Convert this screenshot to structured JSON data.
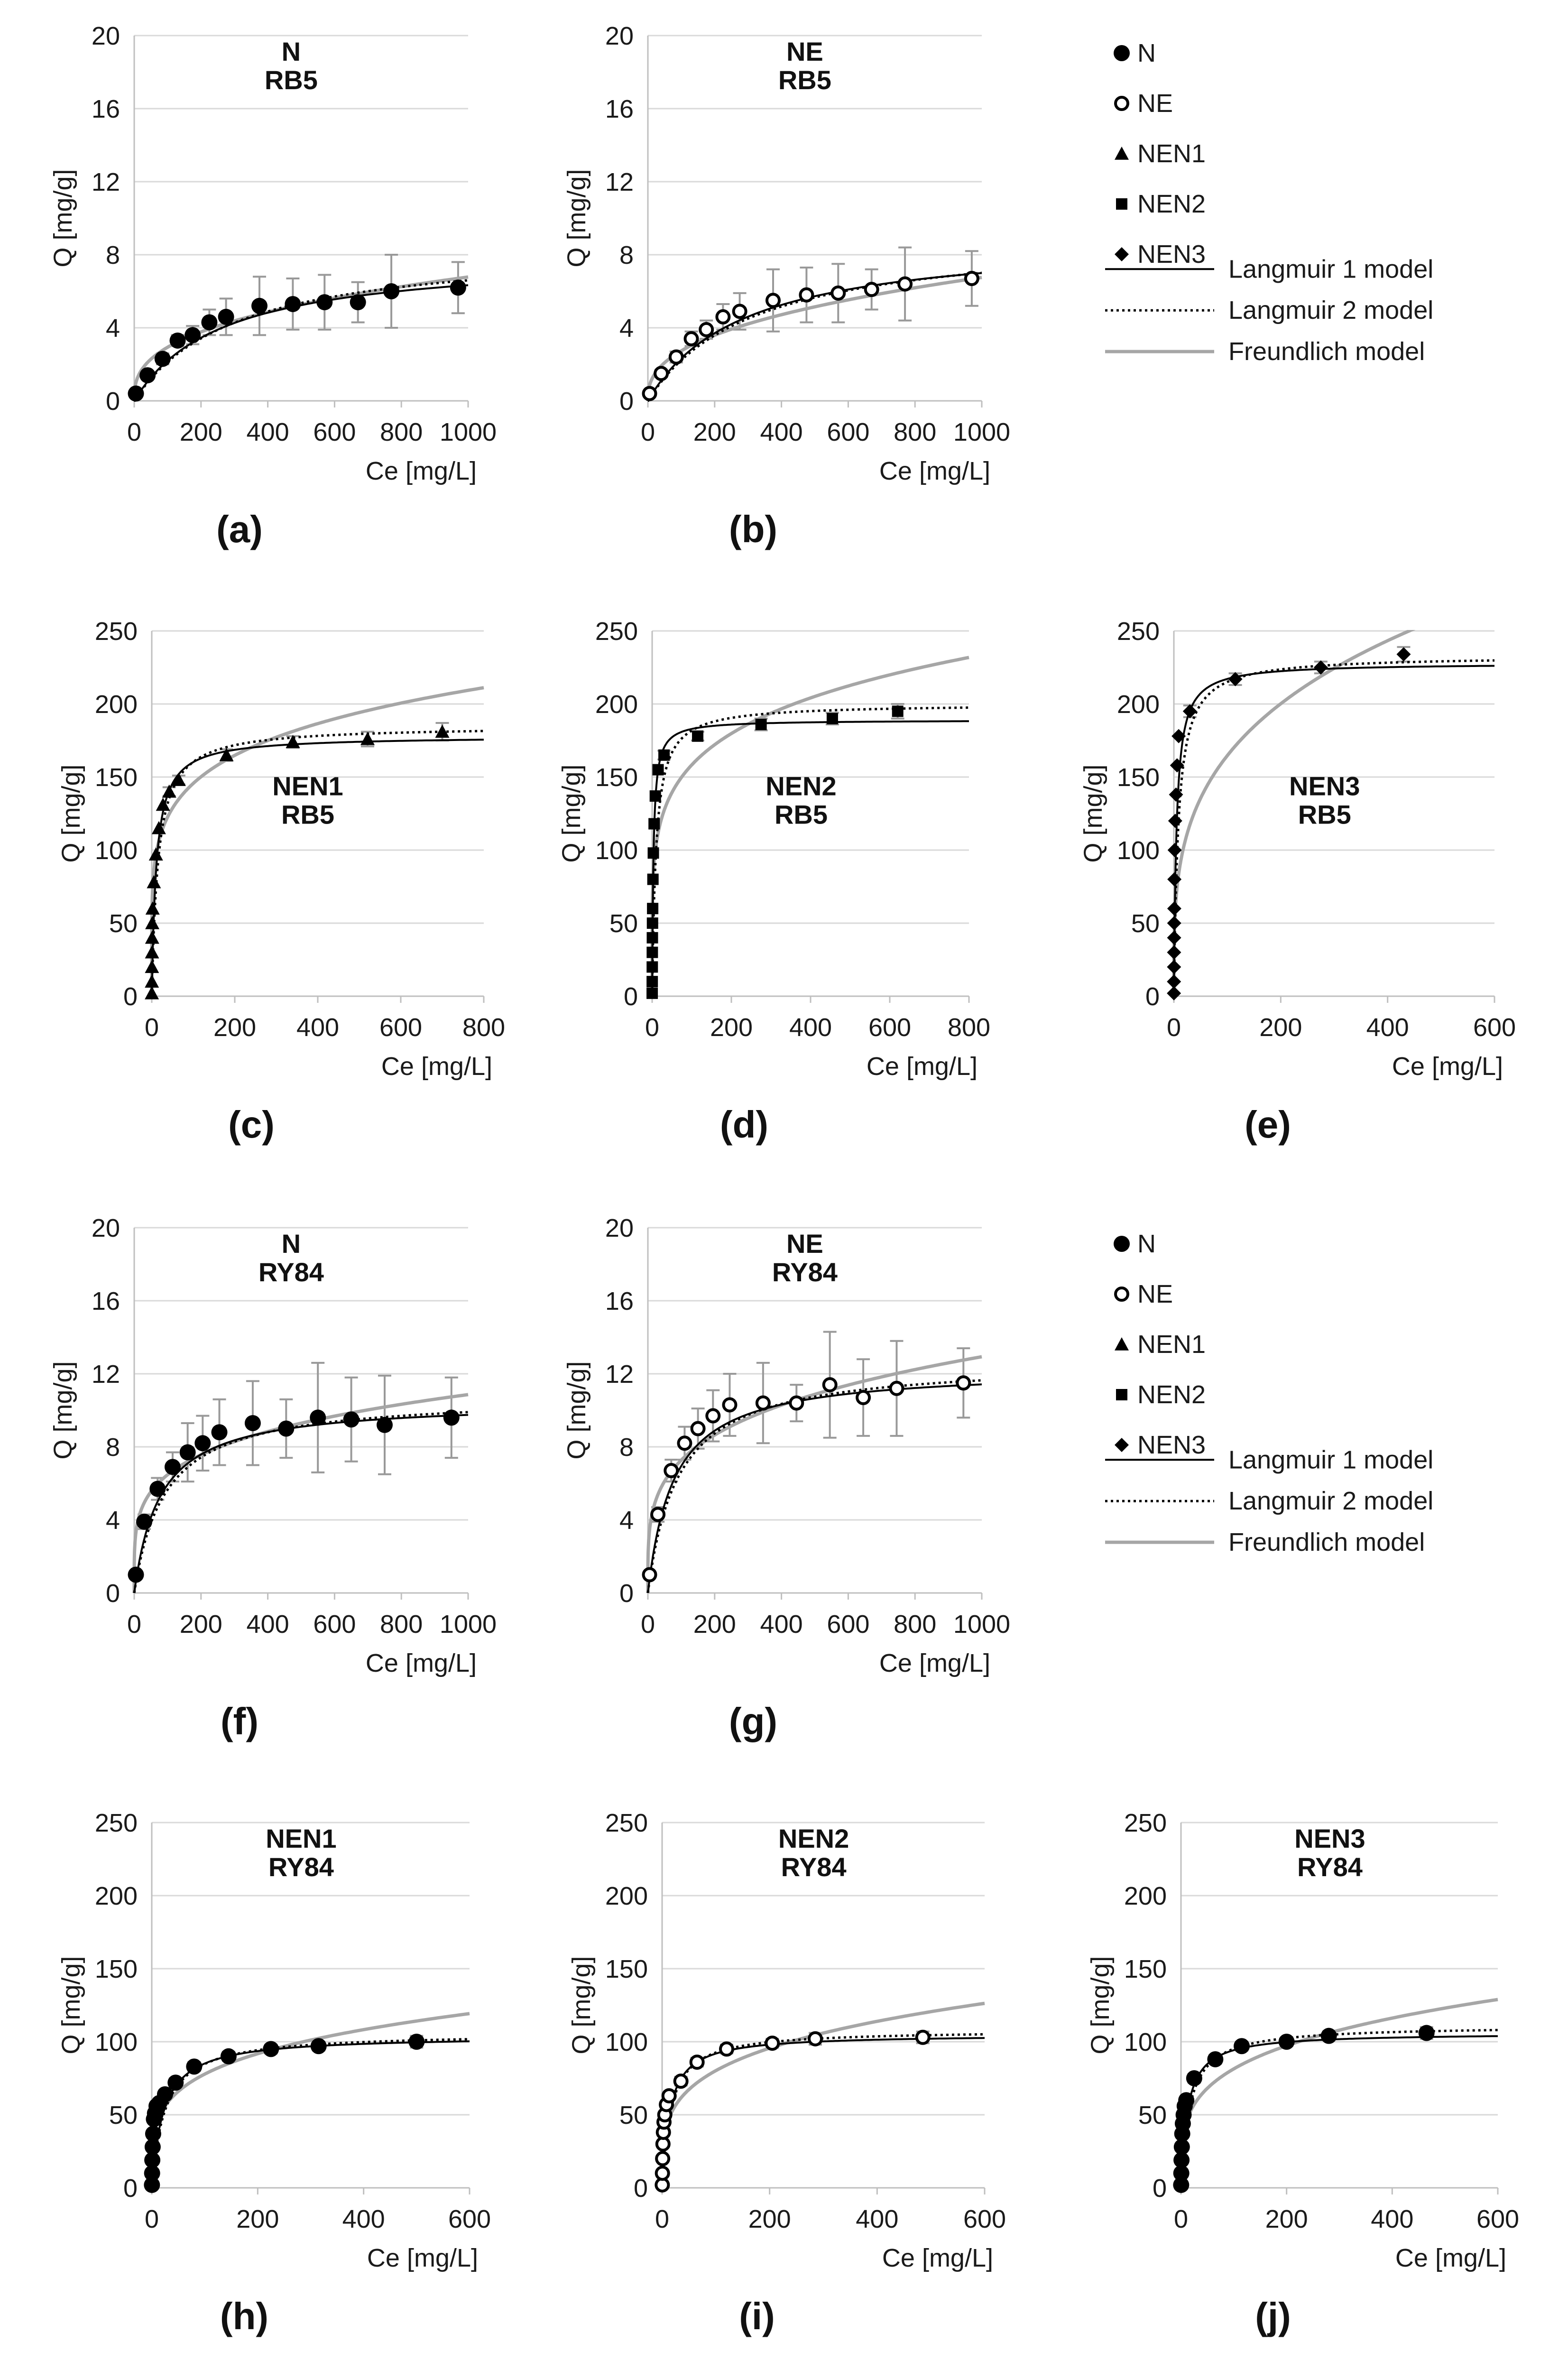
{
  "figure": {
    "legends": [
      {
        "entries": [
          {
            "label": "N",
            "marker": "filled-circle"
          },
          {
            "label": "NE",
            "marker": "open-circle"
          },
          {
            "label": "NEN1",
            "marker": "triangle"
          },
          {
            "label": "NEN2",
            "marker": "square"
          },
          {
            "label": "NEN3",
            "marker": "diamond"
          },
          {
            "label": "Langmuir 1 model",
            "line": "solid-black"
          },
          {
            "label": "Langmuir 2 model",
            "line": "dotted-black"
          },
          {
            "label": "Freundlich model",
            "line": "solid-gray"
          }
        ]
      },
      {
        "entries": [
          {
            "label": "N",
            "marker": "filled-circle"
          },
          {
            "label": "NE",
            "marker": "open-circle"
          },
          {
            "label": "NEN1",
            "marker": "triangle"
          },
          {
            "label": "NEN2",
            "marker": "square"
          },
          {
            "label": "NEN3",
            "marker": "diamond"
          },
          {
            "label": "Langmuir 1 model",
            "line": "solid-black"
          },
          {
            "label": "Langmuir 2 model",
            "line": "dotted-black"
          },
          {
            "label": "Freundlich model",
            "line": "solid-gray"
          }
        ]
      }
    ],
    "colors": {
      "markers": "#000000",
      "langmuir1": "#000000",
      "langmuir2": "#000000",
      "freundlich": "#a6a6a6",
      "gridlines": "#d9d9d9",
      "errorbars": "#999999",
      "axes": "#bfbfbf"
    }
  },
  "chart_data": [
    {
      "id": "a",
      "type": "scatter",
      "panel_label": "(a)",
      "title": [
        "N",
        "RB5"
      ],
      "xlabel": "Ce [mg/L]",
      "ylabel": "Q [mg/g]",
      "xlim": [
        0,
        1000
      ],
      "ylim": [
        0,
        20
      ],
      "xticks": [
        0,
        200,
        400,
        600,
        800,
        1000
      ],
      "yticks": [
        0,
        4,
        8,
        12,
        16,
        20
      ],
      "marker": "filled-circle",
      "title_position": "top",
      "points": {
        "x": [
          5,
          40,
          85,
          130,
          175,
          225,
          275,
          375,
          475,
          570,
          670,
          770,
          970
        ],
        "y": [
          0.4,
          1.4,
          2.3,
          3.3,
          3.6,
          4.3,
          4.6,
          5.2,
          5.3,
          5.4,
          5.4,
          6.0,
          6.2
        ],
        "err": [
          0.1,
          0.2,
          0.3,
          0.3,
          0.5,
          0.7,
          1.0,
          1.6,
          1.4,
          1.5,
          1.1,
          2.0,
          1.4
        ]
      },
      "models": {
        "langmuir1": {
          "qmax": 8.0,
          "K": 0.0038
        },
        "langmuir2": {
          "qmax": 8.6,
          "K": 0.0033
        },
        "freundlich": {
          "K": 0.55,
          "n": 2.75
        }
      }
    },
    {
      "id": "b",
      "type": "scatter",
      "panel_label": "(b)",
      "title": [
        "NE",
        "RB5"
      ],
      "xlabel": "Ce [mg/L]",
      "ylabel": "Q [mg/g]",
      "xlim": [
        0,
        1000
      ],
      "ylim": [
        0,
        20
      ],
      "xticks": [
        0,
        200,
        400,
        600,
        800,
        1000
      ],
      "yticks": [
        0,
        4,
        8,
        12,
        16,
        20
      ],
      "marker": "open-circle",
      "title_position": "top",
      "points": {
        "x": [
          5,
          40,
          85,
          130,
          175,
          225,
          275,
          375,
          475,
          570,
          670,
          770,
          970
        ],
        "y": [
          0.4,
          1.5,
          2.4,
          3.4,
          3.9,
          4.6,
          4.9,
          5.5,
          5.8,
          5.9,
          6.1,
          6.4,
          6.7
        ],
        "err": [
          0.1,
          0.2,
          0.3,
          0.4,
          0.5,
          0.7,
          1.0,
          1.7,
          1.5,
          1.6,
          1.1,
          2.0,
          1.5
        ]
      },
      "models": {
        "langmuir1": {
          "qmax": 9.0,
          "K": 0.0035
        },
        "langmuir2": {
          "qmax": 9.2,
          "K": 0.0032
        },
        "freundlich": {
          "K": 0.45,
          "n": 2.55
        }
      }
    },
    {
      "id": "c",
      "type": "scatter",
      "panel_label": "(c)",
      "title": [
        "NEN1",
        "RB5"
      ],
      "xlabel": "Ce [mg/L]",
      "ylabel": "Q [mg/g]",
      "xlim": [
        0,
        800
      ],
      "ylim": [
        0,
        250
      ],
      "xticks": [
        0,
        200,
        400,
        600,
        800
      ],
      "yticks": [
        0,
        50,
        100,
        150,
        200,
        250
      ],
      "marker": "triangle",
      "title_position": "middle",
      "points": {
        "x": [
          0.1,
          0.2,
          0.4,
          0.6,
          0.9,
          1.2,
          2,
          5,
          10,
          17,
          27,
          42,
          65,
          180,
          340,
          520,
          700
        ],
        "y": [
          2,
          10,
          20,
          30,
          40,
          50,
          60,
          78,
          97,
          115,
          131,
          140,
          148,
          165,
          174,
          176,
          181
        ],
        "err": [
          0,
          0,
          0,
          0,
          0,
          0,
          0,
          0,
          0,
          0,
          0,
          3,
          3,
          4,
          4,
          5,
          6
        ]
      },
      "models": {
        "langmuir1": {
          "qmax": 178,
          "K": 0.09
        },
        "langmuir2": {
          "qmax": 185,
          "K": 0.065
        },
        "freundlich": {
          "K": 64,
          "n": 5.6
        }
      }
    },
    {
      "id": "d",
      "type": "scatter",
      "panel_label": "(d)",
      "title": [
        "NEN2",
        "RB5"
      ],
      "xlabel": "Ce [mg/L]",
      "ylabel": "Q [mg/g]",
      "xlim": [
        0,
        800
      ],
      "ylim": [
        0,
        250
      ],
      "xticks": [
        0,
        200,
        400,
        600,
        800
      ],
      "yticks": [
        0,
        50,
        100,
        150,
        200,
        250
      ],
      "marker": "square",
      "title_position": "middle",
      "points": {
        "x": [
          0.1,
          0.2,
          0.3,
          0.4,
          0.6,
          0.9,
          1.3,
          2,
          3,
          5,
          8,
          15,
          30,
          115,
          275,
          455,
          620
        ],
        "y": [
          2,
          10,
          20,
          30,
          40,
          50,
          60,
          80,
          98,
          118,
          137,
          155,
          165,
          178,
          186,
          190,
          195
        ],
        "err": [
          0,
          0,
          0,
          0,
          0,
          0,
          0,
          0,
          0,
          0,
          0,
          0,
          3,
          3,
          4,
          4,
          5
        ]
      },
      "models": {
        "langmuir1": {
          "qmax": 189,
          "K": 0.3
        },
        "langmuir2": {
          "qmax": 200,
          "K": 0.1
        },
        "freundlich": {
          "K": 68,
          "n": 5.45
        }
      }
    },
    {
      "id": "e",
      "type": "scatter",
      "panel_label": "(e)",
      "title": [
        "NEN3",
        "RB5"
      ],
      "xlabel": "Ce [mg/L]",
      "ylabel": "Q [mg/g]",
      "xlim": [
        0,
        600
      ],
      "ylim": [
        0,
        250
      ],
      "xticks": [
        0,
        200,
        400,
        600
      ],
      "yticks": [
        0,
        50,
        100,
        150,
        200,
        250
      ],
      "marker": "diamond",
      "title_position": "middle",
      "points": {
        "x": [
          0.1,
          0.2,
          0.3,
          0.4,
          0.5,
          0.6,
          0.8,
          1.0,
          1.5,
          2.5,
          4,
          6,
          9,
          30,
          115,
          275,
          430
        ],
        "y": [
          2,
          10,
          20,
          30,
          40,
          50,
          60,
          80,
          100,
          120,
          138,
          158,
          178,
          195,
          217,
          225,
          234
        ],
        "err": [
          0,
          0,
          0,
          0,
          0,
          0,
          0,
          0,
          0,
          0,
          0,
          0,
          0,
          4,
          4,
          4,
          5
        ]
      },
      "models": {
        "langmuir1": {
          "qmax": 228,
          "K": 0.2
        },
        "langmuir2": {
          "qmax": 233,
          "K": 0.12
        },
        "freundlich": {
          "K": 45,
          "n": 3.55
        }
      }
    },
    {
      "id": "f",
      "type": "scatter",
      "panel_label": "(f)",
      "title": [
        "N",
        "RY84"
      ],
      "xlabel": "Ce [mg/L]",
      "ylabel": "Q [mg/g]",
      "xlim": [
        0,
        1000
      ],
      "ylim": [
        0,
        20
      ],
      "xticks": [
        0,
        200,
        400,
        600,
        800,
        1000
      ],
      "yticks": [
        0,
        4,
        8,
        12,
        16,
        20
      ],
      "marker": "filled-circle",
      "title_position": "top",
      "points": {
        "x": [
          5,
          30,
          70,
          115,
          160,
          205,
          255,
          355,
          455,
          550,
          650,
          750,
          950
        ],
        "y": [
          1.0,
          3.9,
          5.7,
          6.9,
          7.7,
          8.2,
          8.8,
          9.3,
          9.0,
          9.6,
          9.5,
          9.2,
          9.6
        ],
        "err": [
          0.1,
          0.4,
          0.6,
          0.8,
          1.6,
          1.5,
          1.8,
          2.3,
          1.6,
          3.0,
          2.3,
          2.7,
          2.2
        ]
      },
      "models": {
        "langmuir1": {
          "qmax": 10.5,
          "K": 0.013
        },
        "langmuir2": {
          "qmax": 10.8,
          "K": 0.011
        },
        "freundlich": {
          "K": 2.3,
          "n": 4.45
        }
      }
    },
    {
      "id": "g",
      "type": "scatter",
      "panel_label": "(g)",
      "title": [
        "NE",
        "RY84"
      ],
      "xlabel": "Ce [mg/L]",
      "ylabel": "Q [mg/g]",
      "xlim": [
        0,
        1000
      ],
      "ylim": [
        0,
        20
      ],
      "xticks": [
        0,
        200,
        400,
        600,
        800,
        1000
      ],
      "yticks": [
        0,
        4,
        8,
        12,
        16,
        20
      ],
      "marker": "open-circle",
      "title_position": "top",
      "points": {
        "x": [
          5,
          30,
          70,
          110,
          150,
          195,
          245,
          345,
          445,
          545,
          645,
          745,
          945
        ],
        "y": [
          1.0,
          4.3,
          6.7,
          8.2,
          9.0,
          9.7,
          10.3,
          10.4,
          10.4,
          11.4,
          10.7,
          11.2,
          11.5
        ],
        "err": [
          0.1,
          0.4,
          0.6,
          0.9,
          1.1,
          1.4,
          1.7,
          2.2,
          1.0,
          2.9,
          2.1,
          2.6,
          1.9
        ]
      },
      "models": {
        "langmuir1": {
          "qmax": 12.3,
          "K": 0.013
        },
        "langmuir2": {
          "qmax": 12.7,
          "K": 0.011
        },
        "freundlich": {
          "K": 2.3,
          "n": 4.0
        }
      }
    },
    {
      "id": "h",
      "type": "scatter",
      "panel_label": "(h)",
      "title": [
        "NEN1",
        "RY84"
      ],
      "xlabel": "Ce [mg/L]",
      "ylabel": "Q [mg/g]",
      "xlim": [
        0,
        600
      ],
      "ylim": [
        0,
        250
      ],
      "xticks": [
        0,
        200,
        400,
        600
      ],
      "yticks": [
        0,
        50,
        100,
        150,
        200,
        250
      ],
      "marker": "filled-circle",
      "title_position": "top",
      "points": {
        "x": [
          0.3,
          0.6,
          1.0,
          1.7,
          2.6,
          4,
          6,
          9,
          14,
          25,
          45,
          80,
          145,
          225,
          315,
          500
        ],
        "y": [
          2,
          10,
          19,
          28,
          37,
          47,
          51,
          56,
          58,
          64,
          72,
          83,
          90,
          95,
          97,
          100
        ],
        "err": [
          0,
          0,
          0,
          0,
          0,
          0,
          0,
          0,
          0,
          0,
          3,
          3,
          3,
          3,
          3,
          4
        ]
      },
      "models": {
        "langmuir1": {
          "qmax": 104,
          "K": 0.045
        },
        "langmuir2": {
          "qmax": 106,
          "K": 0.04
        },
        "freundlich": {
          "K": 26,
          "n": 4.2
        }
      }
    },
    {
      "id": "i",
      "type": "scatter",
      "panel_label": "(i)",
      "title": [
        "NEN2",
        "RY84"
      ],
      "xlabel": "Ce [mg/L]",
      "ylabel": "Q [mg/g]",
      "xlim": [
        0,
        600
      ],
      "ylim": [
        0,
        250
      ],
      "xticks": [
        0,
        200,
        400,
        600
      ],
      "yticks": [
        0,
        50,
        100,
        150,
        200,
        250
      ],
      "marker": "open-circle",
      "title_position": "top",
      "points": {
        "x": [
          0.3,
          0.6,
          1.0,
          1.6,
          2.4,
          3.5,
          5,
          8,
          13,
          35,
          65,
          120,
          205,
          285,
          485
        ],
        "y": [
          2,
          10,
          20,
          30,
          38,
          45,
          50,
          57,
          63,
          73,
          86,
          95,
          99,
          102,
          103
        ],
        "err": [
          0,
          0,
          0,
          0,
          0,
          0,
          0,
          0,
          0,
          3,
          3,
          3,
          3,
          4,
          4
        ]
      },
      "models": {
        "langmuir1": {
          "qmax": 105,
          "K": 0.07
        },
        "langmuir2": {
          "qmax": 108,
          "K": 0.06
        },
        "freundlich": {
          "K": 25,
          "n": 3.95
        }
      }
    },
    {
      "id": "j",
      "type": "scatter",
      "panel_label": "(j)",
      "title": [
        "NEN3",
        "RY84"
      ],
      "xlabel": "Ce [mg/L]",
      "ylabel": "Q [mg/g]",
      "xlim": [
        0,
        600
      ],
      "ylim": [
        0,
        250
      ],
      "xticks": [
        0,
        200,
        400,
        600
      ],
      "yticks": [
        0,
        50,
        100,
        150,
        200,
        250
      ],
      "marker": "filled-circle",
      "title_position": "top",
      "points": {
        "x": [
          0.3,
          0.6,
          1.0,
          1.6,
          2.4,
          3.5,
          5,
          7,
          10,
          25,
          65,
          115,
          200,
          280,
          465
        ],
        "y": [
          2,
          10,
          19,
          28,
          37,
          44,
          50,
          56,
          60,
          75,
          88,
          97,
          100,
          104,
          106
        ],
        "err": [
          0,
          0,
          0,
          0,
          0,
          0,
          0,
          0,
          0,
          3,
          3,
          3,
          3,
          3,
          4
        ]
      },
      "models": {
        "langmuir1": {
          "qmax": 106,
          "K": 0.08
        },
        "langmuir2": {
          "qmax": 111,
          "K": 0.06
        },
        "freundlich": {
          "K": 25,
          "n": 3.9
        }
      }
    }
  ]
}
